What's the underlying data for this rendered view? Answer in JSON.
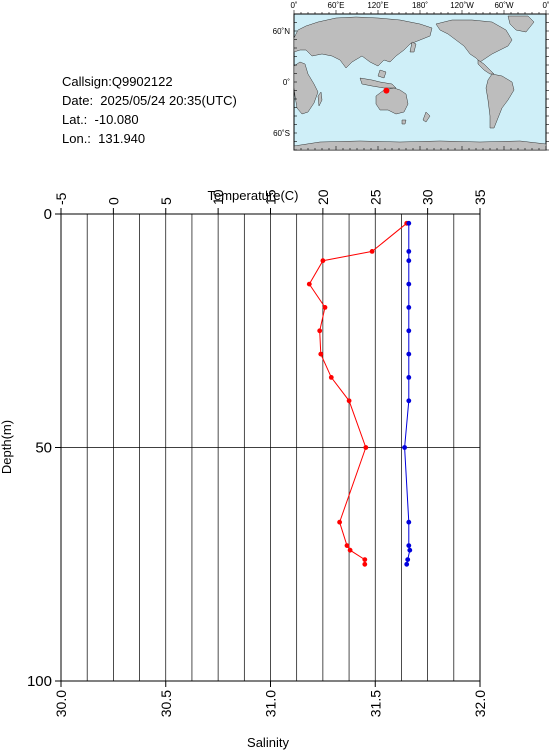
{
  "info": {
    "callsign": "Callsign:Q9902122",
    "date": "Date:  2025/05/24 20:35(UTC)",
    "lat": "Lat.:  -10.080",
    "lon": "Lon.:  131.940"
  },
  "map": {
    "top_ticks": [
      "0˚",
      "60˚E",
      "120˚E",
      "180˚",
      "120˚W",
      "60˚W",
      "0˚"
    ],
    "lat_ticks": [
      "60˚N",
      "0˚",
      "60˚S"
    ],
    "ocean_color": "#cfeff8",
    "land_color": "#bdbdbd",
    "marker_color": "#ff0000",
    "marker": {
      "lat": -10.08,
      "lon": 131.94
    }
  },
  "chart_data": {
    "type": "line",
    "title": "",
    "top_axis": {
      "label": "Temperature(C)",
      "range": [
        -5,
        35
      ],
      "ticks": [
        "-5",
        "0",
        "5",
        "10",
        "15",
        "20",
        "25",
        "30",
        "35"
      ]
    },
    "bottom_axis": {
      "label": "Salinity",
      "range": [
        30.0,
        32.0
      ],
      "ticks": [
        "30.0",
        "30.5",
        "31.0",
        "31.5",
        "32.0"
      ]
    },
    "left_axis": {
      "label": "Depth(m)",
      "range": [
        0,
        100
      ],
      "inverted": true,
      "ticks": [
        "0",
        "50",
        "100"
      ]
    },
    "grid": true,
    "series": [
      {
        "name": "Temperature(C)",
        "axis": "top",
        "color": "#ff0000",
        "points": [
          [
            28.0,
            2
          ],
          [
            24.7,
            8
          ],
          [
            20.0,
            10
          ],
          [
            18.7,
            15
          ],
          [
            20.2,
            20
          ],
          [
            19.7,
            25
          ],
          [
            19.8,
            30
          ],
          [
            20.8,
            35
          ],
          [
            22.5,
            40
          ],
          [
            24.1,
            50
          ],
          [
            21.6,
            66
          ],
          [
            22.3,
            71
          ],
          [
            22.6,
            72
          ],
          [
            24.0,
            74
          ],
          [
            24.0,
            75
          ]
        ]
      },
      {
        "name": "Salinity",
        "axis": "bottom",
        "color": "#0000dd",
        "points": [
          [
            31.66,
            2
          ],
          [
            31.66,
            8
          ],
          [
            31.66,
            10
          ],
          [
            31.66,
            15
          ],
          [
            31.66,
            20
          ],
          [
            31.66,
            25
          ],
          [
            31.66,
            30
          ],
          [
            31.66,
            35
          ],
          [
            31.66,
            40
          ],
          [
            31.64,
            50
          ],
          [
            31.66,
            66
          ],
          [
            31.66,
            71
          ],
          [
            31.665,
            72
          ],
          [
            31.655,
            74
          ],
          [
            31.65,
            75
          ]
        ]
      }
    ]
  }
}
